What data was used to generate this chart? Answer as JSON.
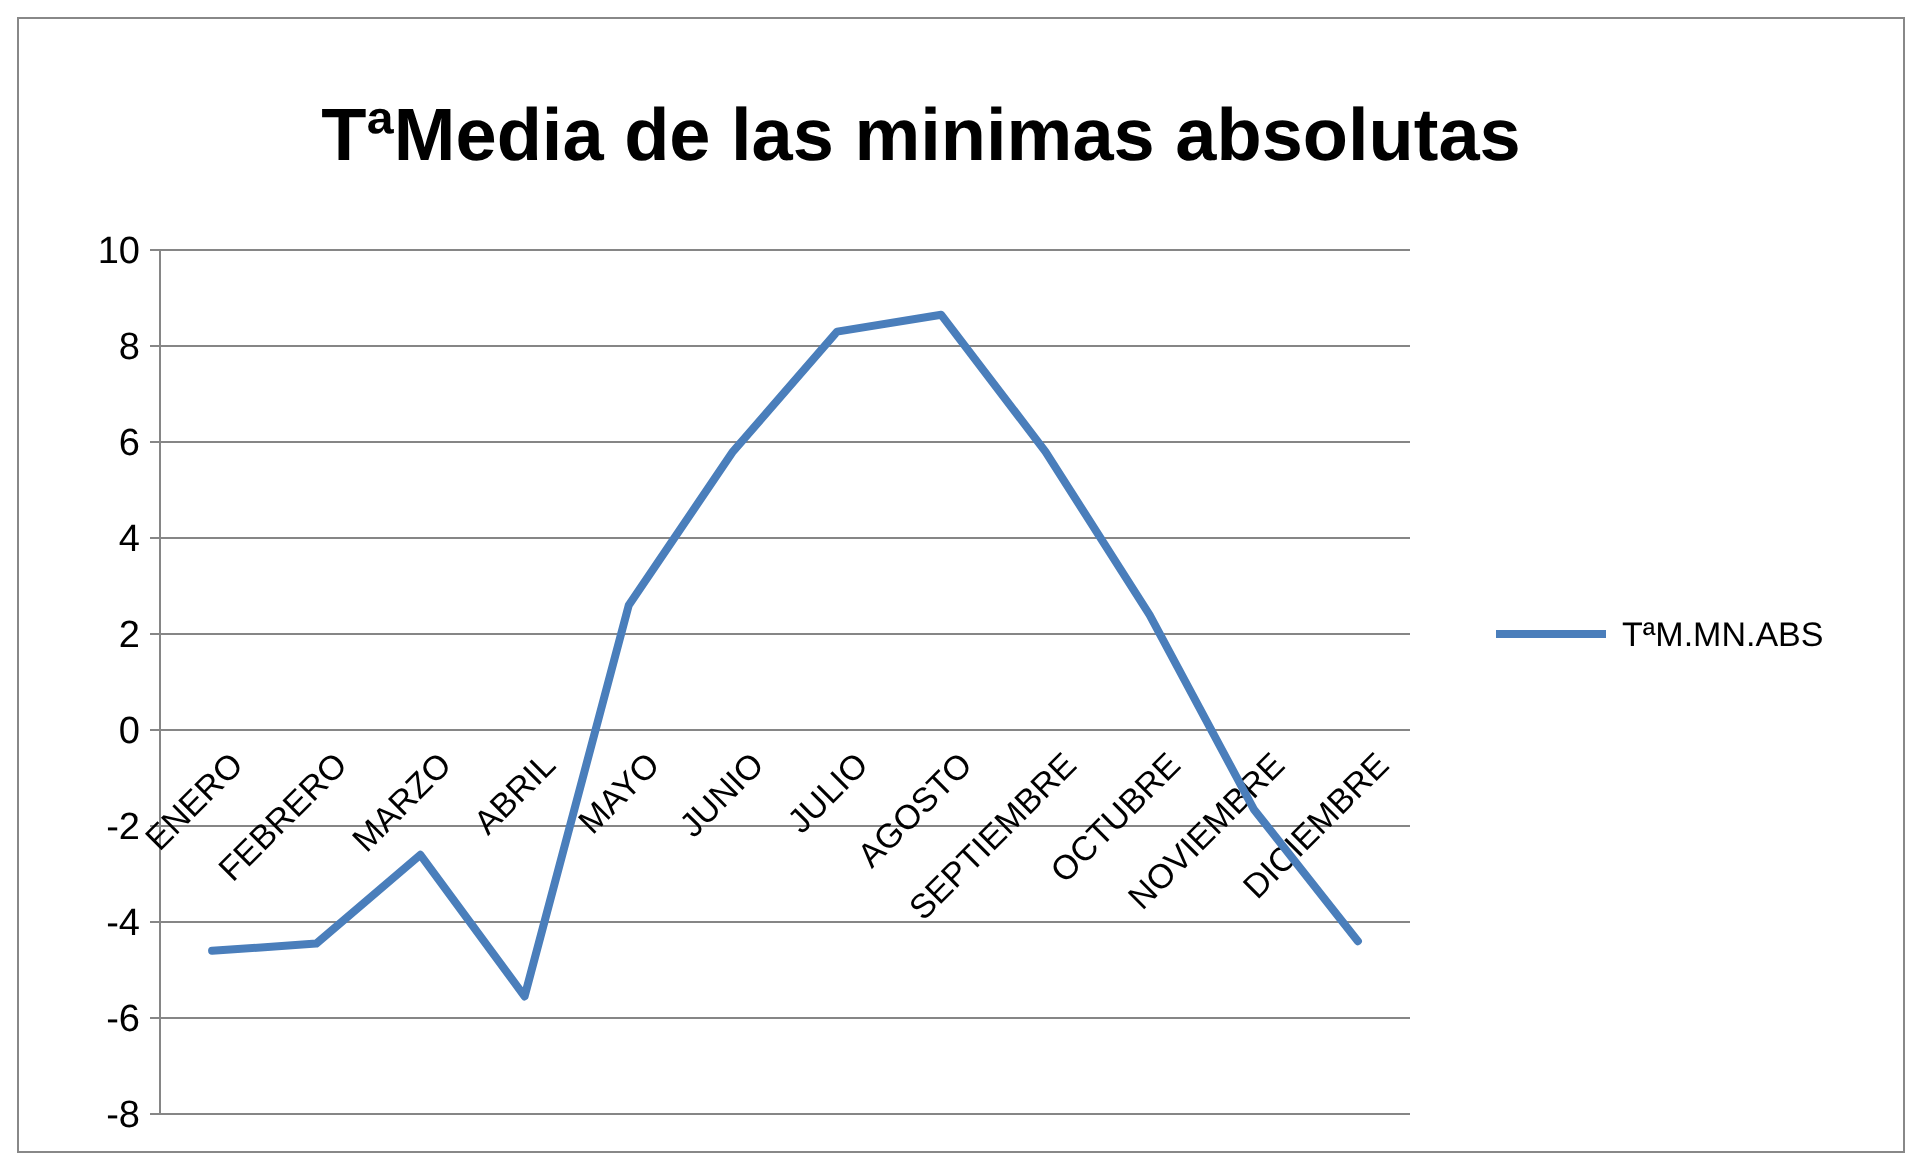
{
  "chart_data": {
    "type": "line",
    "title": "TªMedia de las minimas absolutas",
    "categories": [
      "ENERO",
      "FEBRERO",
      "MARZO",
      "ABRIL",
      "MAYO",
      "JUNIO",
      "JULIO",
      "AGOSTO",
      "SEPTIEMBRE",
      "OCTUBRE",
      "NOVIEMBRE",
      "DICIEMBRE"
    ],
    "series": [
      {
        "name": "TªM.MN.ABS",
        "color": "#4a7ebb",
        "values": [
          -4.6,
          -4.45,
          -2.6,
          -5.55,
          2.6,
          5.8,
          8.3,
          8.65,
          5.8,
          2.4,
          -1.65,
          -4.4
        ]
      }
    ],
    "ylim": [
      -8,
      10
    ],
    "yticks": [
      -8,
      -6,
      -4,
      -2,
      0,
      2,
      4,
      6,
      8,
      10
    ],
    "grid": "y",
    "legend": "right",
    "marker": "none",
    "line_style": "solid"
  }
}
